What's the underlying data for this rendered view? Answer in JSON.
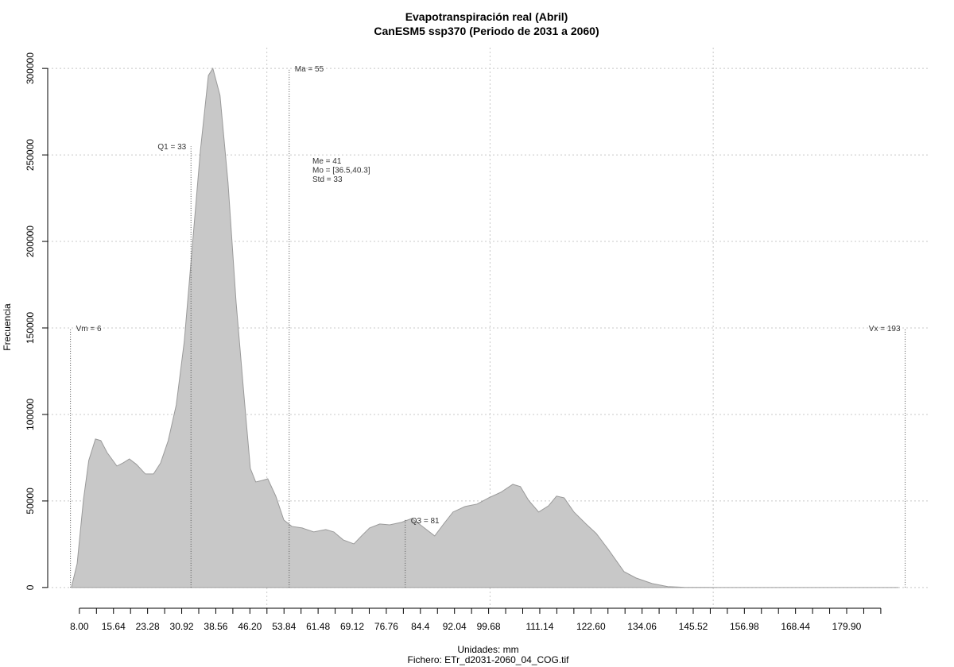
{
  "chart_data": {
    "type": "area",
    "title": "Evapotranspiración real (Abril)",
    "subtitle": "CanESM5 ssp370 (Periodo de 2031 a 2060)",
    "x_label": "Unidades: mm",
    "caption": "Fichero: ETr_d2031-2060_04_COG.tif",
    "y_label": "Frecuencia",
    "color": "#c8c8c8",
    "line_color": "#9a9a9a",
    "grid": true,
    "x": [
      6.2,
      7.5,
      8.9,
      10.1,
      11.6,
      12.8,
      14.2,
      16.4,
      17.8,
      19.2,
      20.8,
      22.8,
      24.6,
      26.2,
      27.9,
      29.7,
      31.5,
      33.3,
      35.1,
      36.9,
      37.9,
      39.5,
      41.3,
      43.1,
      44.9,
      46.3,
      47.5,
      49.0,
      50.2,
      52.0,
      53.8,
      55.6,
      57.9,
      60.5,
      63.2,
      65.0,
      67.1,
      69.5,
      71.2,
      73.0,
      75.3,
      77.5,
      80.1,
      82.5,
      84.6,
      87.6,
      89.6,
      91.7,
      94.4,
      97.1,
      99.7,
      102.4,
      105.1,
      106.8,
      108.6,
      110.9,
      113.1,
      114.9,
      116.6,
      118.8,
      121.5,
      123.8,
      126.5,
      130.0,
      132.7,
      136.3,
      139.8,
      143.4,
      150.5,
      191.5
    ],
    "values": [
      0,
      13800,
      50500,
      73400,
      85800,
      84900,
      78000,
      70200,
      72000,
      74300,
      71100,
      65600,
      65600,
      72000,
      84900,
      105500,
      142200,
      197200,
      252300,
      295900,
      300000,
      284400,
      233900,
      165100,
      110100,
      68800,
      61000,
      61900,
      62800,
      52800,
      39000,
      35300,
      34400,
      32100,
      33500,
      32100,
      27500,
      25200,
      29800,
      34400,
      36700,
      36200,
      37600,
      39900,
      35800,
      29800,
      36700,
      43600,
      46800,
      48200,
      51800,
      55000,
      59600,
      58300,
      50500,
      43600,
      47200,
      52800,
      51800,
      43600,
      36700,
      31200,
      22000,
      9200,
      5500,
      2300,
      500,
      100,
      0,
      0
    ],
    "xlim": [
      0.9,
      198.6
    ],
    "ylim": [
      -12000,
      312000
    ],
    "yticks": [
      0,
      50000,
      100000,
      150000,
      200000,
      250000,
      300000
    ],
    "xgrid": [
      50,
      100,
      150
    ],
    "xticks": [
      {
        "value": 8,
        "label": "8.00"
      },
      {
        "value": 11.82,
        "label": null
      },
      15.64,
      {
        "value": 19.46,
        "label": null
      },
      23.28,
      {
        "value": 27.1,
        "label": null
      },
      30.92,
      {
        "value": 34.74,
        "label": null
      },
      38.56,
      {
        "value": 42.38,
        "label": null
      },
      {
        "value": 46.2,
        "label": "46.20"
      },
      {
        "value": 50.02,
        "label": null
      },
      53.84,
      {
        "value": 57.66,
        "label": null
      },
      61.48,
      {
        "value": 65.3,
        "label": null
      },
      69.12,
      {
        "value": 72.94,
        "label": null
      },
      76.76,
      {
        "value": 80.58,
        "label": null
      },
      84.4,
      {
        "value": 88.22,
        "label": null
      },
      92.04,
      {
        "value": 95.86,
        "label": null
      },
      99.68,
      {
        "value": 103.5,
        "label": null
      },
      {
        "value": 107.32,
        "label": null
      },
      111.14,
      {
        "value": 114.96,
        "label": null
      },
      {
        "value": 118.78,
        "label": null
      },
      {
        "value": 122.6,
        "label": "122.60"
      },
      {
        "value": 126.42,
        "label": null
      },
      {
        "value": 130.24,
        "label": null
      },
      134.06,
      {
        "value": 137.88,
        "label": null
      },
      {
        "value": 141.7,
        "label": null
      },
      145.52,
      {
        "value": 149.34,
        "label": null
      },
      {
        "value": 153.16,
        "label": null
      },
      156.98,
      {
        "value": 160.8,
        "label": null
      },
      {
        "value": 164.62,
        "label": null
      },
      168.44,
      {
        "value": 172.26,
        "label": null
      },
      {
        "value": 176.08,
        "label": null
      },
      {
        "value": 179.9,
        "label": "179.90"
      },
      {
        "value": 183.72,
        "label": null
      },
      {
        "value": 187.54,
        "label": null
      }
    ],
    "markers": [
      {
        "label": "Vm = 6",
        "x": 6,
        "y": 150000
      },
      {
        "label": "Q1 = 33",
        "x": 33,
        "y": 255000
      },
      {
        "label": "Ma = 55",
        "x": 55,
        "y": 300000
      },
      {
        "label": "Q3 = 81",
        "x": 81,
        "y": 39000
      },
      {
        "label": "Vx = 193",
        "x": 193,
        "y": 150000
      }
    ],
    "stats_text": [
      "Me = 41",
      "Mo = [36.5,40.3]",
      "Std = 33"
    ]
  }
}
